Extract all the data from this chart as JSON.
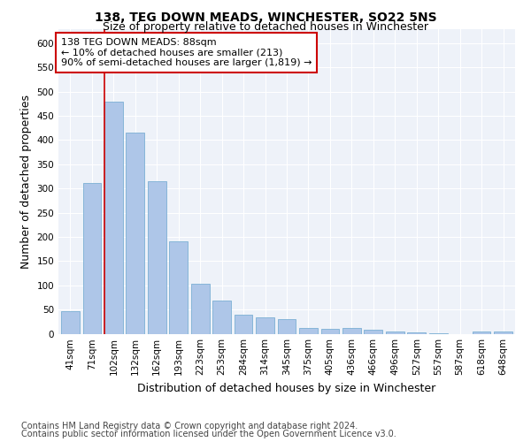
{
  "title": "138, TEG DOWN MEADS, WINCHESTER, SO22 5NS",
  "subtitle": "Size of property relative to detached houses in Winchester",
  "xlabel": "Distribution of detached houses by size in Winchester",
  "ylabel": "Number of detached properties",
  "categories": [
    "41sqm",
    "71sqm",
    "102sqm",
    "132sqm",
    "162sqm",
    "193sqm",
    "223sqm",
    "253sqm",
    "284sqm",
    "314sqm",
    "345sqm",
    "375sqm",
    "405sqm",
    "436sqm",
    "466sqm",
    "496sqm",
    "527sqm",
    "557sqm",
    "587sqm",
    "618sqm",
    "648sqm"
  ],
  "values": [
    47,
    312,
    480,
    415,
    315,
    190,
    103,
    69,
    39,
    34,
    30,
    12,
    10,
    12,
    8,
    5,
    3,
    1,
    0,
    5,
    4
  ],
  "bar_color": "#aec6e8",
  "bar_edge_color": "#7bafd4",
  "vline_x": 1.575,
  "vline_color": "#cc0000",
  "annotation_text": "138 TEG DOWN MEADS: 88sqm\n← 10% of detached houses are smaller (213)\n90% of semi-detached houses are larger (1,819) →",
  "annotation_box_color": "#ffffff",
  "annotation_box_edge": "#cc0000",
  "ylim": [
    0,
    630
  ],
  "yticks": [
    0,
    50,
    100,
    150,
    200,
    250,
    300,
    350,
    400,
    450,
    500,
    550,
    600
  ],
  "footer1": "Contains HM Land Registry data © Crown copyright and database right 2024.",
  "footer2": "Contains public sector information licensed under the Open Government Licence v3.0.",
  "background_color": "#eef2f9",
  "title_fontsize": 10,
  "subtitle_fontsize": 9,
  "axis_label_fontsize": 9,
  "tick_fontsize": 7.5,
  "annotation_fontsize": 8,
  "footer_fontsize": 7
}
